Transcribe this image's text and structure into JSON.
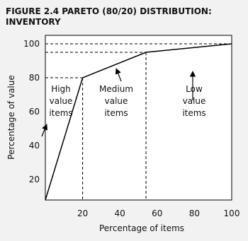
{
  "chart_data": {
    "type": "line",
    "title": [
      "FIGURE 2.4 PARETO (80/20) DISTRIBUTION:",
      "INVENTORY"
    ],
    "x_label": "Percentage of items",
    "y_label": "Percentage of value",
    "x": [
      0,
      20,
      54,
      100
    ],
    "values": [
      8,
      80,
      95,
      100
    ],
    "color": "#000000",
    "xlim": [
      0,
      100
    ],
    "ylim": [
      8,
      105
    ],
    "xticks": [
      20,
      40,
      60,
      80,
      100
    ],
    "yticks": [
      20,
      40,
      60,
      80,
      100
    ],
    "annotations": [
      "High value items",
      "Medium value items",
      "Low value items"
    ]
  }
}
